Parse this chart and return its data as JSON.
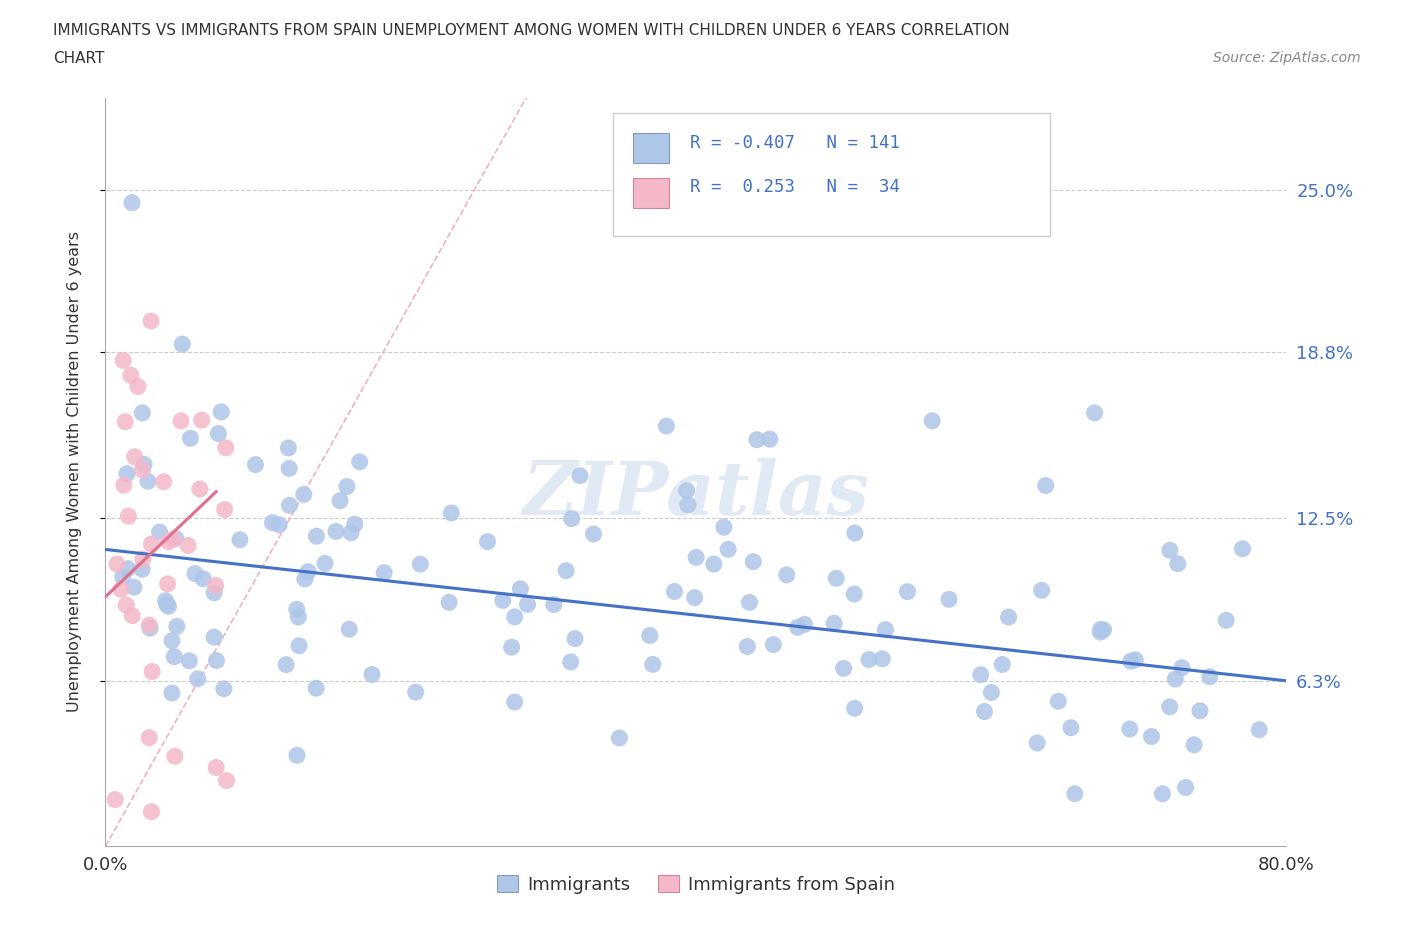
{
  "title_line1": "IMMIGRANTS VS IMMIGRANTS FROM SPAIN UNEMPLOYMENT AMONG WOMEN WITH CHILDREN UNDER 6 YEARS CORRELATION",
  "title_line2": "CHART",
  "source": "Source: ZipAtlas.com",
  "ylabel": "Unemployment Among Women with Children Under 6 years",
  "xmin": 0.0,
  "xmax": 0.8,
  "ymin": 0.0,
  "ymax": 0.285,
  "blue_R": -0.407,
  "blue_N": 141,
  "pink_R": 0.253,
  "pink_N": 34,
  "blue_color": "#aec6e8",
  "pink_color": "#f4b8c8",
  "blue_line_color": "#4472c4",
  "pink_line_color": "#e07090",
  "diag_line_color": "#e8a0b0",
  "text_color": "#4472c4",
  "right_ytick_labels": [
    "6.3%",
    "12.5%",
    "18.8%",
    "25.0%"
  ],
  "right_ytick_vals": [
    0.063,
    0.125,
    0.188,
    0.25
  ],
  "xtick_positions": [
    0.0,
    0.1,
    0.2,
    0.3,
    0.4,
    0.5,
    0.6,
    0.7,
    0.8
  ],
  "xtick_labels": [
    "0.0%",
    "",
    "",
    "",
    "",
    "",
    "",
    "",
    "80.0%"
  ],
  "legend_blue_text": "R = -0.407   N = 141",
  "legend_pink_text": "R =  0.253   N =  34",
  "bottom_legend_blue": "Immigrants",
  "bottom_legend_pink": "Immigrants from Spain",
  "watermark": "ZIPatlas",
  "blue_line_start_y": 0.113,
  "blue_line_end_y": 0.063,
  "pink_line_start_y": 0.095,
  "pink_line_end_y": 0.135,
  "pink_line_end_x": 0.075
}
